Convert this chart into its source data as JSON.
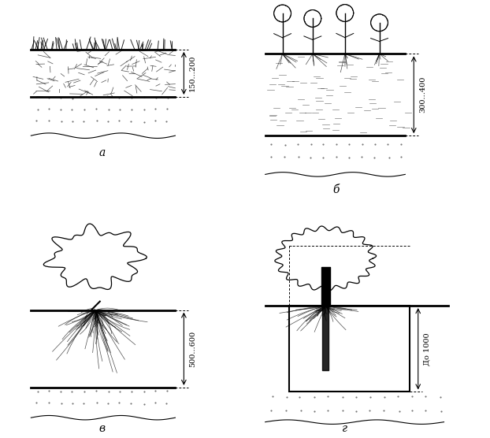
{
  "bg_color": "#ffffff",
  "label_a": "а",
  "label_b": "б",
  "label_v": "в",
  "label_g": "г",
  "dim_a": "150...200",
  "dim_b": "300...400",
  "dim_v": "500...600",
  "dim_g": "До 1000",
  "line_color": "#000000",
  "dashed_color": "#000000",
  "soil_top_color": "#d0d0d0",
  "soil_bottom_color": "#e8e8e8"
}
